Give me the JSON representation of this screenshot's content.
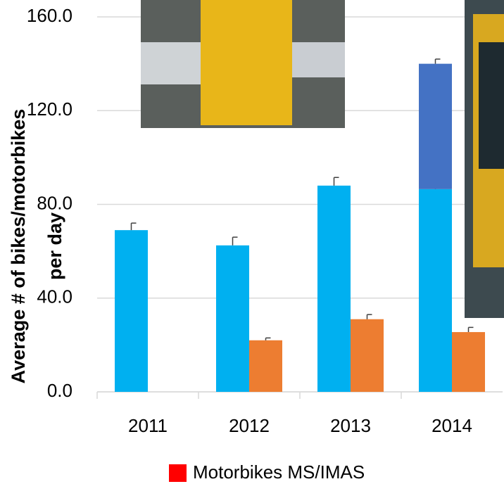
{
  "chart_data": {
    "type": "bar",
    "categories": [
      "2011",
      "2012",
      "2013",
      "2014"
    ],
    "series": [
      {
        "color": "#00b0f0",
        "values": [
          69,
          62.5,
          88,
          86.5
        ],
        "errors": [
          3,
          3.5,
          3.5,
          5
        ]
      },
      {
        "color": "#4472c4",
        "values": [
          null,
          null,
          null,
          53.5
        ],
        "errors": [
          null,
          null,
          null,
          2
        ],
        "stacked_on": 0
      },
      {
        "name": "Motorbikes MS/IMAS",
        "color": "#ed7d31",
        "values": [
          null,
          22,
          31,
          25.5
        ],
        "errors": [
          null,
          1,
          2,
          2
        ]
      }
    ],
    "legend_color": "#ff0000",
    "ylabel": [
      "Average # of bikes/motorbikes",
      "per day"
    ],
    "ylim": [
      0,
      160
    ],
    "yticks": [
      {
        "value": 0,
        "label": "0.0"
      },
      {
        "value": 40,
        "label": "40.0"
      },
      {
        "value": 80,
        "label": "80.0"
      },
      {
        "value": 120,
        "label": "120.0"
      },
      {
        "value": 160,
        "label": "160.0"
      }
    ],
    "grid": true
  }
}
